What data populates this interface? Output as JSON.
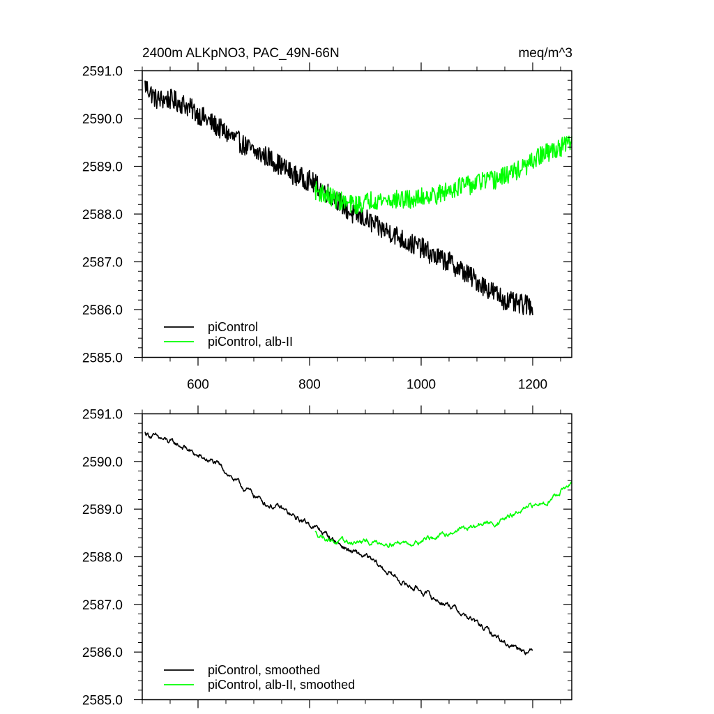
{
  "figure": {
    "title_left": "2400m ALKpNO3, PAC_49N-66N",
    "title_right": "meq/m^3"
  },
  "chart_data": [
    {
      "type": "line",
      "panel": "top",
      "xlim": [
        500,
        1270
      ],
      "ylim": [
        2585.0,
        2591.0
      ],
      "x_ticks": [
        600,
        800,
        1000,
        1200
      ],
      "x_tick_labels": [
        "600",
        "800",
        "1000",
        "1200"
      ],
      "y_ticks": [
        2585,
        2586,
        2587,
        2588,
        2589,
        2590,
        2591
      ],
      "y_tick_labels": [
        "2585.0",
        "2586.0",
        "2587.0",
        "2588.0",
        "2589.0",
        "2590.0",
        "2591.0"
      ],
      "grid": false,
      "legend_position": "bottom-left",
      "series": [
        {
          "name": "piControl",
          "color": "#000000",
          "x": [
            505,
            525,
            550,
            575,
            600,
            625,
            650,
            675,
            700,
            725,
            750,
            775,
            800,
            825,
            850,
            875,
            900,
            925,
            950,
            975,
            1000,
            1025,
            1050,
            1075,
            1100,
            1125,
            1150,
            1175,
            1200
          ],
          "y": [
            2590.7,
            2590.4,
            2590.4,
            2590.3,
            2590.1,
            2589.9,
            2589.7,
            2589.5,
            2589.3,
            2589.2,
            2589.0,
            2588.8,
            2588.7,
            2588.5,
            2588.3,
            2588.0,
            2587.9,
            2587.7,
            2587.6,
            2587.4,
            2587.3,
            2587.1,
            2587.0,
            2586.8,
            2586.6,
            2586.4,
            2586.2,
            2586.1,
            2586.1
          ],
          "noise": 0.22
        },
        {
          "name": "piControl, alb-II",
          "color": "#00ff00",
          "x": [
            810,
            830,
            850,
            870,
            890,
            910,
            930,
            950,
            970,
            990,
            1010,
            1030,
            1050,
            1070,
            1090,
            1110,
            1130,
            1150,
            1170,
            1190,
            1210,
            1230,
            1250,
            1270
          ],
          "y": [
            2588.5,
            2588.4,
            2588.3,
            2588.2,
            2588.2,
            2588.3,
            2588.3,
            2588.3,
            2588.3,
            2588.3,
            2588.4,
            2588.4,
            2588.5,
            2588.6,
            2588.6,
            2588.7,
            2588.7,
            2588.8,
            2588.9,
            2589.0,
            2589.2,
            2589.3,
            2589.4,
            2589.5
          ],
          "noise": 0.2
        }
      ]
    },
    {
      "type": "line",
      "panel": "bottom",
      "xlim": [
        500,
        1270
      ],
      "ylim": [
        2585.0,
        2591.0
      ],
      "x_ticks": [
        600,
        800,
        1000,
        1200
      ],
      "x_tick_labels": [],
      "y_ticks": [
        2585,
        2586,
        2587,
        2588,
        2589,
        2590,
        2591
      ],
      "y_tick_labels": [
        "2585.0",
        "2586.0",
        "2587.0",
        "2588.0",
        "2589.0",
        "2590.0",
        "2591.0"
      ],
      "grid": false,
      "legend_position": "bottom-left",
      "series": [
        {
          "name": "piControl, smoothed",
          "color": "#000000",
          "x": [
            505,
            525,
            550,
            575,
            600,
            625,
            650,
            675,
            700,
            725,
            750,
            775,
            800,
            825,
            850,
            875,
            900,
            925,
            950,
            975,
            1000,
            1025,
            1050,
            1075,
            1100,
            1125,
            1150,
            1175,
            1200
          ],
          "y": [
            2590.6,
            2590.5,
            2590.4,
            2590.3,
            2590.1,
            2590.0,
            2589.8,
            2589.5,
            2589.3,
            2589.1,
            2589.0,
            2588.8,
            2588.7,
            2588.5,
            2588.3,
            2588.1,
            2588.0,
            2587.8,
            2587.6,
            2587.4,
            2587.3,
            2587.1,
            2587.0,
            2586.8,
            2586.6,
            2586.4,
            2586.2,
            2586.1,
            2586.0
          ],
          "noise": 0.09
        },
        {
          "name": "piControl, alb-II, smoothed",
          "color": "#00ff00",
          "x": [
            810,
            830,
            850,
            870,
            890,
            910,
            930,
            950,
            970,
            990,
            1010,
            1030,
            1050,
            1070,
            1090,
            1110,
            1130,
            1150,
            1170,
            1190,
            1210,
            1230,
            1250,
            1270
          ],
          "y": [
            2588.5,
            2588.4,
            2588.3,
            2588.3,
            2588.3,
            2588.3,
            2588.3,
            2588.3,
            2588.3,
            2588.3,
            2588.4,
            2588.4,
            2588.5,
            2588.6,
            2588.6,
            2588.7,
            2588.7,
            2588.8,
            2588.9,
            2589.0,
            2589.1,
            2589.2,
            2589.4,
            2589.5
          ],
          "noise": 0.08
        }
      ]
    }
  ]
}
